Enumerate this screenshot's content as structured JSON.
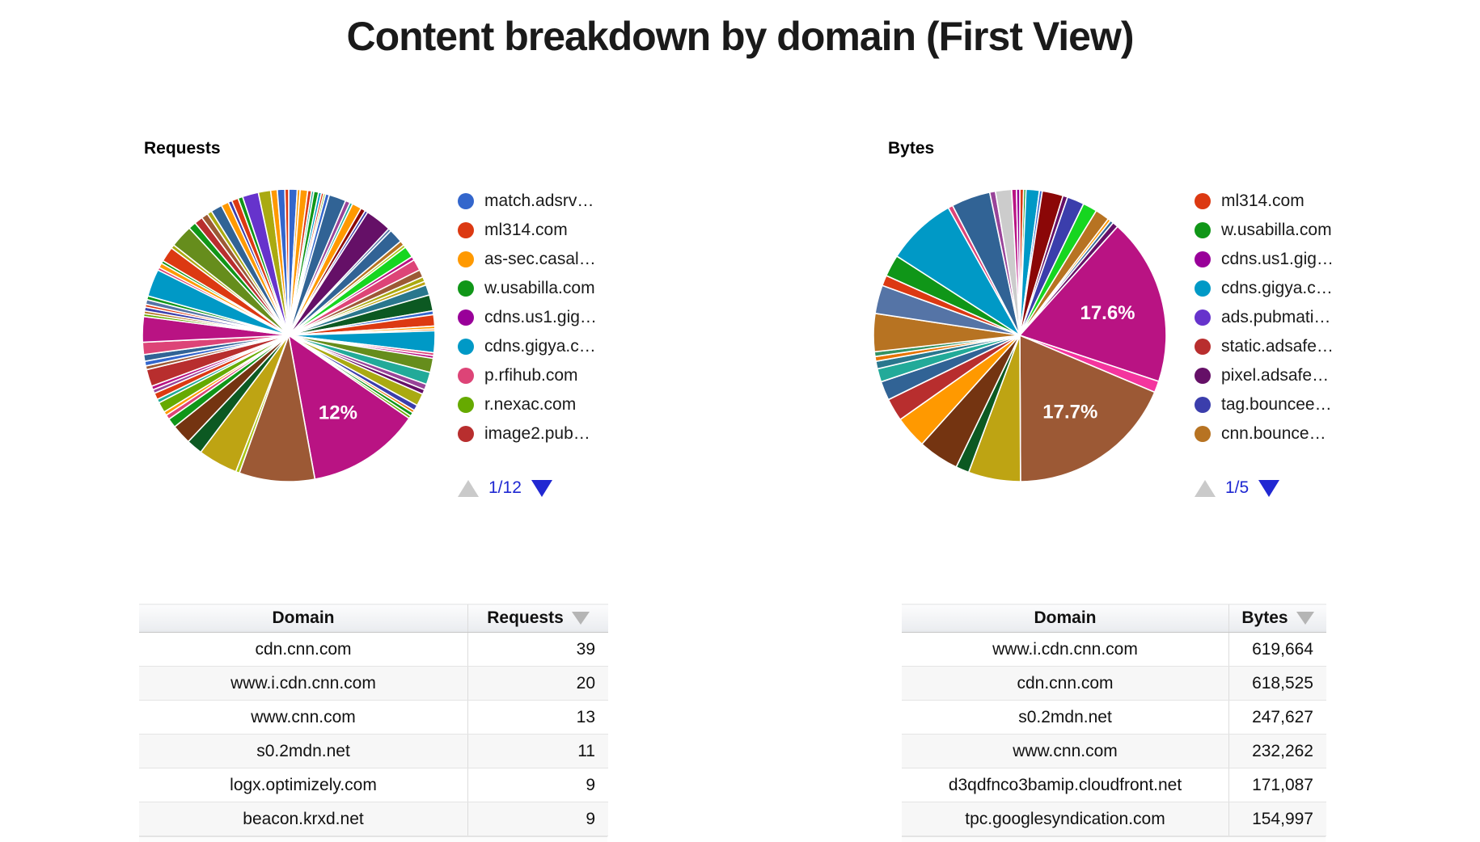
{
  "title": "Content breakdown by domain (First View)",
  "chart_data": [
    {
      "type": "pie",
      "name": "requests",
      "title": "Requests",
      "legend_position": "right",
      "legend_page": "1/12",
      "labeled_slices": [
        "12%"
      ],
      "legend": [
        {
          "label": "match.adsrv…",
          "color": "#3366CC"
        },
        {
          "label": "ml314.com",
          "color": "#DC3912"
        },
        {
          "label": "as-sec.casal…",
          "color": "#FF9900"
        },
        {
          "label": "w.usabilla.com",
          "color": "#109618"
        },
        {
          "label": "cdns.us1.gig…",
          "color": "#990099"
        },
        {
          "label": "cdns.gigya.c…",
          "color": "#0099C6"
        },
        {
          "label": "p.rfihub.com",
          "color": "#DD4477"
        },
        {
          "label": "r.nexac.com",
          "color": "#66AA00"
        },
        {
          "label": "image2.pub…",
          "color": "#B82E2E"
        }
      ],
      "slices": [
        [
          0.9,
          "#3366CC"
        ],
        [
          0.3,
          "#FF9900"
        ],
        [
          0.8,
          "#FF9900"
        ],
        [
          0.4,
          "#DC3912"
        ],
        [
          0.25,
          "#22AA99"
        ],
        [
          0.5,
          "#109618"
        ],
        [
          0.3,
          "#0099C6"
        ],
        [
          0.25,
          "#DC3912"
        ],
        [
          0.2,
          "#66AA00"
        ],
        [
          0.4,
          "#3366CC"
        ],
        [
          1.8,
          "#316395"
        ],
        [
          0.5,
          "#994499"
        ],
        [
          0.3,
          "#22AA99"
        ],
        [
          1.0,
          "#FF9900"
        ],
        [
          0.5,
          "#8B0707"
        ],
        [
          0.3,
          "#3B3EAC"
        ],
        [
          2.8,
          "#651067"
        ],
        [
          0.3,
          "#5574A6"
        ],
        [
          1.5,
          "#316395"
        ],
        [
          0.5,
          "#B77322"
        ],
        [
          0.3,
          "#A9C413"
        ],
        [
          1.2,
          "#16D620"
        ],
        [
          0.4,
          "#B91383"
        ],
        [
          1.2,
          "#DD4477"
        ],
        [
          0.8,
          "#9C5935"
        ],
        [
          0.5,
          "#AAAA11"
        ],
        [
          0.4,
          "#BEA413"
        ],
        [
          1.1,
          "#2A778D"
        ],
        [
          1.7,
          "#0C5922"
        ],
        [
          0.4,
          "#3366CC"
        ],
        [
          1.2,
          "#DC3912"
        ],
        [
          0.3,
          "#FF9900"
        ],
        [
          0.2,
          "#E67300"
        ],
        [
          2.3,
          "#0099C6"
        ],
        [
          0.3,
          "#DD4477"
        ],
        [
          0.3,
          "#B91383"
        ],
        [
          1.5,
          "#668D1C"
        ],
        [
          1.3,
          "#22AA99"
        ],
        [
          0.6,
          "#994499"
        ],
        [
          0.5,
          "#651067"
        ],
        [
          1.3,
          "#AAAA11"
        ],
        [
          0.6,
          "#3B3EAC"
        ],
        [
          0.3,
          "#E67300"
        ],
        [
          0.4,
          "#109618"
        ],
        [
          0.3,
          "#66AA00"
        ],
        [
          12,
          "#B91383",
          "12%"
        ],
        [
          8,
          "#9C5935"
        ],
        [
          0.4,
          "#A9C413"
        ],
        [
          4.2,
          "#BEA413"
        ],
        [
          1.7,
          "#0C5922"
        ],
        [
          2.1,
          "#743411"
        ],
        [
          1.0,
          "#109618"
        ],
        [
          0.5,
          "#DD4477"
        ],
        [
          0.4,
          "#FF9900"
        ],
        [
          1.1,
          "#66AA00"
        ],
        [
          0.4,
          "#22AA99"
        ],
        [
          0.7,
          "#DC3912"
        ],
        [
          0.4,
          "#994499"
        ],
        [
          0.4,
          "#B91383"
        ],
        [
          1.8,
          "#B82E2E"
        ],
        [
          0.4,
          "#9C5935"
        ],
        [
          0.5,
          "#3366CC"
        ],
        [
          0.7,
          "#316395"
        ],
        [
          1.3,
          "#DD4477"
        ],
        [
          2.7,
          "#B91383"
        ],
        [
          0.3,
          "#66AA00"
        ],
        [
          0.3,
          "#B77322"
        ],
        [
          0.4,
          "#3B3EAC"
        ],
        [
          0.3,
          "#DC3912"
        ],
        [
          0.5,
          "#5574A6"
        ],
        [
          0.4,
          "#109618"
        ],
        [
          2.9,
          "#0099C6"
        ],
        [
          0.3,
          "#DD4477"
        ],
        [
          0.5,
          "#FF9900"
        ],
        [
          0.3,
          "#109618"
        ],
        [
          1.6,
          "#DC3912"
        ],
        [
          0.4,
          "#AAAA11"
        ],
        [
          2.4,
          "#668D1C"
        ],
        [
          0.8,
          "#109618"
        ],
        [
          0.9,
          "#B82E2E"
        ],
        [
          0.7,
          "#9C5935"
        ],
        [
          0.5,
          "#AAAA11"
        ],
        [
          1.2,
          "#316395"
        ],
        [
          0.8,
          "#FF9900"
        ],
        [
          0.4,
          "#3B3EAC"
        ],
        [
          0.7,
          "#DC3912"
        ],
        [
          0.5,
          "#109618"
        ],
        [
          1.7,
          "#6633CC"
        ],
        [
          1.3,
          "#AAAA11"
        ],
        [
          0.7,
          "#FF9900"
        ],
        [
          0.8,
          "#3366CC"
        ],
        [
          0.4,
          "#DC3912"
        ]
      ]
    },
    {
      "type": "pie",
      "name": "bytes",
      "title": "Bytes",
      "legend_position": "right",
      "legend_page": "1/5",
      "labeled_slices": [
        "17.6%",
        "17.7%"
      ],
      "legend": [
        {
          "label": "ml314.com",
          "color": "#DC3912"
        },
        {
          "label": "w.usabilla.com",
          "color": "#109618"
        },
        {
          "label": "cdns.us1.gig…",
          "color": "#990099"
        },
        {
          "label": "cdns.gigya.c…",
          "color": "#0099C6"
        },
        {
          "label": "ads.pubmati…",
          "color": "#6633CC"
        },
        {
          "label": "static.adsafe…",
          "color": "#B82E2E"
        },
        {
          "label": "pixel.adsafe…",
          "color": "#651067"
        },
        {
          "label": "tag.bouncee…",
          "color": "#3B3EAC"
        },
        {
          "label": "cnn.bounce…",
          "color": "#B77322"
        }
      ],
      "slices": [
        [
          0.4,
          "#DC3912"
        ],
        [
          0.25,
          "#109618"
        ],
        [
          1.4,
          "#0099C6"
        ],
        [
          0.3,
          "#3366CC"
        ],
        [
          2.2,
          "#8B0707"
        ],
        [
          0.5,
          "#651067"
        ],
        [
          1.8,
          "#3B3EAC"
        ],
        [
          1.5,
          "#16D620"
        ],
        [
          1.5,
          "#B77322"
        ],
        [
          0.3,
          "#FF9900"
        ],
        [
          0.35,
          "#316395"
        ],
        [
          0.6,
          "#651067"
        ],
        [
          17.6,
          "#B91383",
          "17.6%"
        ],
        [
          1.2,
          "#F4359E"
        ],
        [
          17.7,
          "#9C5935",
          "17.7%"
        ],
        [
          5.5,
          "#BEA413"
        ],
        [
          1.4,
          "#0C5922"
        ],
        [
          4.3,
          "#743411"
        ],
        [
          3.4,
          "#FF9900"
        ],
        [
          2.4,
          "#B82E2E"
        ],
        [
          2.0,
          "#316395"
        ],
        [
          1.4,
          "#22AA99"
        ],
        [
          0.8,
          "#2A778D"
        ],
        [
          0.5,
          "#E67300"
        ],
        [
          0.5,
          "#329262"
        ],
        [
          4.0,
          "#B77322"
        ],
        [
          3.0,
          "#5574A6"
        ],
        [
          1.1,
          "#DC3912"
        ],
        [
          2.3,
          "#109618"
        ],
        [
          7.4,
          "#0099C6"
        ],
        [
          0.5,
          "#DD4477"
        ],
        [
          4.1,
          "#316395"
        ],
        [
          0.6,
          "#994499"
        ],
        [
          1.7,
          "#CCCCCC"
        ],
        [
          0.5,
          "#B91383"
        ],
        [
          0.35,
          "#990099"
        ]
      ]
    },
    {
      "type": "table",
      "name": "requests-table",
      "headers": [
        "Domain",
        "Requests"
      ],
      "sorted_column": "Requests",
      "sort_direction": "desc",
      "rows": [
        [
          "cdn.cnn.com",
          "39"
        ],
        [
          "www.i.cdn.cnn.com",
          "20"
        ],
        [
          "www.cnn.com",
          "13"
        ],
        [
          "s0.2mdn.net",
          "11"
        ],
        [
          "logx.optimizely.com",
          "9"
        ],
        [
          "beacon.krxd.net",
          "9"
        ]
      ]
    },
    {
      "type": "table",
      "name": "bytes-table",
      "headers": [
        "Domain",
        "Bytes"
      ],
      "sorted_column": "Bytes",
      "sort_direction": "desc",
      "rows": [
        [
          "www.i.cdn.cnn.com",
          "619,664"
        ],
        [
          "cdn.cnn.com",
          "618,525"
        ],
        [
          "s0.2mdn.net",
          "247,627"
        ],
        [
          "www.cnn.com",
          "232,262"
        ],
        [
          "d3qdfnco3bamip.cloudfront.net",
          "171,087"
        ],
        [
          "tpc.googlesyndication.com",
          "154,997"
        ]
      ]
    }
  ],
  "pager_colors": {
    "inactive": "#CACACA",
    "active": "#2128D2",
    "text": "#1E27D2"
  }
}
